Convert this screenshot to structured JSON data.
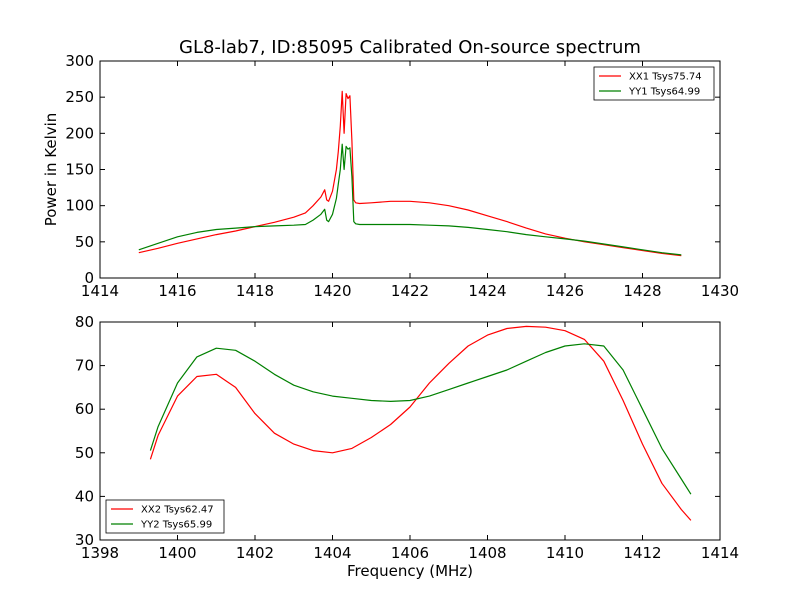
{
  "title": "GL8-lab7, ID:85095 Calibrated On-source spectrum",
  "colors": {
    "red": "#ff0000",
    "green": "#008000"
  },
  "chart_data": [
    {
      "type": "line",
      "title": "GL8-lab7, ID:85095 Calibrated On-source spectrum",
      "xlabel": "",
      "ylabel": "Power in Kelvin",
      "xlim": [
        1414,
        1430
      ],
      "ylim": [
        0,
        300
      ],
      "xticks": [
        "1414",
        "1416",
        "1418",
        "1420",
        "1422",
        "1424",
        "1426",
        "1428",
        "1430"
      ],
      "yticks": [
        "0",
        "50",
        "100",
        "150",
        "200",
        "250",
        "300"
      ],
      "legend_position": "top-right",
      "grid": false,
      "series": [
        {
          "name": "XX1 Tsys75.74",
          "color": "#ff0000",
          "x": [
            1415.0,
            1415.5,
            1416.0,
            1416.5,
            1417.0,
            1417.5,
            1418.0,
            1418.5,
            1419.0,
            1419.3,
            1419.5,
            1419.7,
            1419.8,
            1419.85,
            1419.9,
            1420.0,
            1420.1,
            1420.15,
            1420.2,
            1420.25,
            1420.3,
            1420.35,
            1420.4,
            1420.45,
            1420.5,
            1420.55,
            1420.6,
            1420.7,
            1421.0,
            1421.5,
            1422.0,
            1422.5,
            1423.0,
            1423.5,
            1424.0,
            1424.5,
            1425.0,
            1425.5,
            1426.0,
            1426.5,
            1427.0,
            1427.5,
            1428.0,
            1428.5,
            1429.0
          ],
          "y": [
            35,
            41,
            48,
            54,
            60,
            65,
            71,
            77,
            84,
            90,
            100,
            112,
            122,
            108,
            106,
            120,
            150,
            175,
            210,
            258,
            200,
            255,
            248,
            252,
            190,
            108,
            104,
            103,
            104,
            106,
            106,
            104,
            100,
            94,
            86,
            78,
            69,
            61,
            55,
            50,
            46,
            42,
            38,
            34,
            31
          ]
        },
        {
          "name": "YY1 Tsys64.99",
          "color": "#008000",
          "x": [
            1415.0,
            1415.5,
            1416.0,
            1416.5,
            1417.0,
            1417.5,
            1418.0,
            1418.5,
            1419.0,
            1419.3,
            1419.5,
            1419.7,
            1419.8,
            1419.85,
            1419.9,
            1420.0,
            1420.1,
            1420.15,
            1420.2,
            1420.25,
            1420.3,
            1420.35,
            1420.4,
            1420.45,
            1420.5,
            1420.55,
            1420.6,
            1420.7,
            1421.0,
            1421.5,
            1422.0,
            1422.5,
            1423.0,
            1423.5,
            1424.0,
            1424.5,
            1425.0,
            1425.5,
            1426.0,
            1426.5,
            1427.0,
            1427.5,
            1428.0,
            1428.5,
            1429.0
          ],
          "y": [
            39,
            48,
            57,
            63,
            67,
            69,
            71,
            72,
            73,
            74,
            80,
            88,
            95,
            80,
            78,
            88,
            110,
            130,
            150,
            185,
            150,
            182,
            178,
            180,
            140,
            78,
            75,
            74,
            74,
            74,
            74,
            73,
            72,
            70,
            67,
            64,
            60,
            57,
            54,
            51,
            47,
            43,
            39,
            35,
            32
          ]
        }
      ]
    },
    {
      "type": "line",
      "title": "",
      "xlabel": "Frequency (MHz)",
      "ylabel": "",
      "xlim": [
        1398,
        1414
      ],
      "ylim": [
        30,
        80
      ],
      "xticks": [
        "1398",
        "1400",
        "1402",
        "1404",
        "1406",
        "1408",
        "1410",
        "1412",
        "1414"
      ],
      "yticks": [
        "30",
        "40",
        "50",
        "60",
        "70",
        "80"
      ],
      "legend_position": "bottom-left",
      "grid": false,
      "series": [
        {
          "name": "XX2 Tsys62.47",
          "color": "#ff0000",
          "x": [
            1399.3,
            1399.5,
            1400.0,
            1400.5,
            1401.0,
            1401.5,
            1402.0,
            1402.5,
            1403.0,
            1403.5,
            1404.0,
            1404.5,
            1405.0,
            1405.5,
            1406.0,
            1406.5,
            1407.0,
            1407.5,
            1408.0,
            1408.5,
            1409.0,
            1409.5,
            1410.0,
            1410.5,
            1411.0,
            1411.5,
            1412.0,
            1412.5,
            1413.0,
            1413.25
          ],
          "y": [
            48.5,
            54,
            63,
            67.5,
            68,
            65,
            59,
            54.5,
            52,
            50.5,
            50,
            51,
            53.5,
            56.5,
            60.5,
            66,
            70.5,
            74.5,
            77,
            78.5,
            79,
            78.8,
            78,
            76,
            71,
            62,
            52,
            43,
            37,
            34.5
          ]
        },
        {
          "name": "YY2 Tsys65.99",
          "color": "#008000",
          "x": [
            1399.3,
            1399.5,
            1400.0,
            1400.5,
            1401.0,
            1401.5,
            1402.0,
            1402.5,
            1403.0,
            1403.5,
            1404.0,
            1404.5,
            1405.0,
            1405.5,
            1406.0,
            1406.5,
            1407.0,
            1407.5,
            1408.0,
            1408.5,
            1409.0,
            1409.5,
            1410.0,
            1410.5,
            1411.0,
            1411.5,
            1412.0,
            1412.5,
            1413.0,
            1413.25
          ],
          "y": [
            50.5,
            56,
            66,
            72,
            74,
            73.5,
            71,
            68,
            65.5,
            64,
            63,
            62.5,
            62,
            61.8,
            62,
            63,
            64.5,
            66,
            67.5,
            69,
            71,
            73,
            74.5,
            75,
            74.5,
            69,
            60,
            51,
            44,
            40.5
          ]
        }
      ]
    }
  ]
}
